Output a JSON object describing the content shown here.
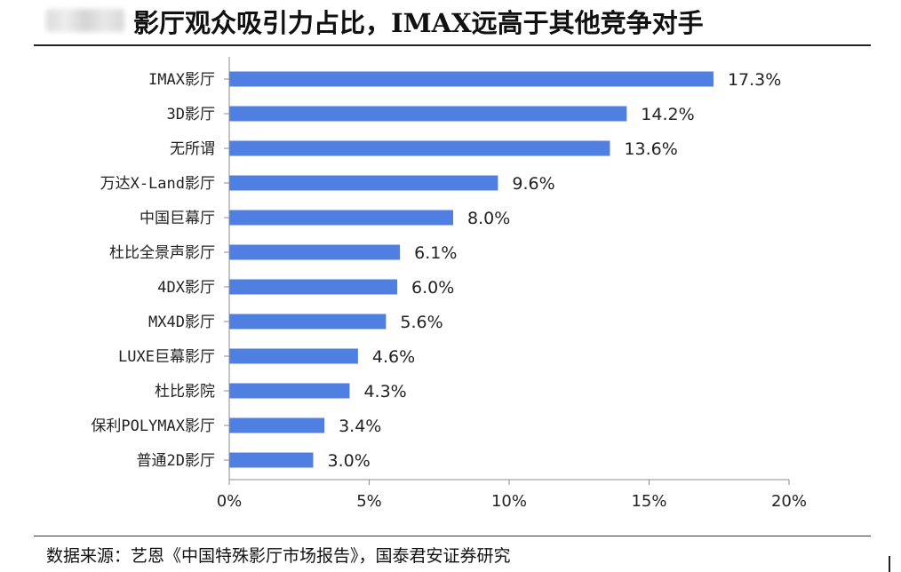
{
  "header": {
    "title": "影厅观众吸引力占比，IMAX远高于其他竞争对手"
  },
  "footer": {
    "source": "数据来源：艺恩《中国特殊影厅市场报告》，国泰君安证券研究"
  },
  "colors": {
    "bar": "#4f7fe0",
    "axis": "#8c8c8c",
    "text": "#222222"
  },
  "chart_data": {
    "type": "bar",
    "orientation": "horizontal",
    "title": "影厅观众吸引力占比，IMAX远高于其他竞争对手",
    "xlabel": "",
    "ylabel": "",
    "xlim": [
      0,
      20
    ],
    "x_ticks": [
      0,
      5,
      10,
      15,
      20
    ],
    "x_tick_labels": [
      "0%",
      "5%",
      "10%",
      "15%",
      "20%"
    ],
    "grid": false,
    "legend": "none",
    "categories": [
      "IMAX影厅",
      "3D影厅",
      "无所谓",
      "万达X-Land影厅",
      "中国巨幕厅",
      "杜比全景声影厅",
      "4DX影厅",
      "MX4D影厅",
      "LUXE巨幕影厅",
      "杜比影院",
      "保利POLYMAX影厅",
      "普通2D影厅"
    ],
    "values": [
      17.3,
      14.2,
      13.6,
      9.6,
      8.0,
      6.1,
      6.0,
      5.6,
      4.6,
      4.3,
      3.4,
      3.0
    ],
    "value_labels": [
      "17.3%",
      "14.2%",
      "13.6%",
      "9.6%",
      "8.0%",
      "6.1%",
      "6.0%",
      "5.6%",
      "4.6%",
      "4.3%",
      "3.4%",
      "3.0%"
    ]
  }
}
